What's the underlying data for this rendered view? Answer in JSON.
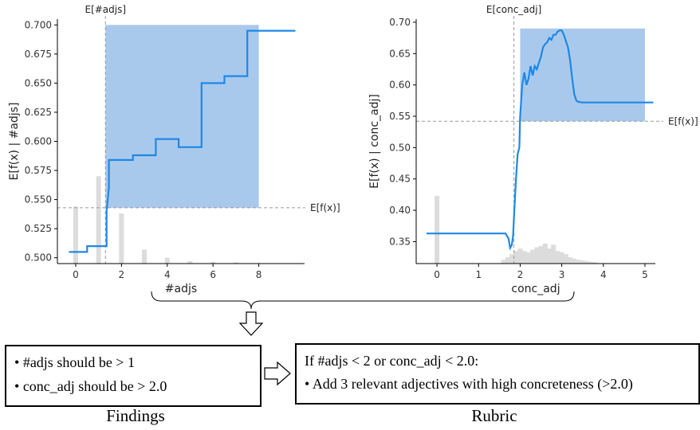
{
  "colors": {
    "curve": "#1e88e5",
    "band": "#a9c9ec",
    "hist": "#dcdcdc",
    "ref": "#999999"
  },
  "chart_data": [
    {
      "type": "line",
      "xlabel": "#adjs",
      "ylabel": "E[f(x) | #adjs]",
      "xlim": [
        -0.8,
        10.0
      ],
      "ylim": [
        0.495,
        0.705
      ],
      "xticks": [
        0,
        2,
        4,
        6,
        8
      ],
      "yticks": [
        "0.500",
        "0.525",
        "0.550",
        "0.575",
        "0.600",
        "0.625",
        "0.650",
        "0.675",
        "0.700"
      ],
      "ytick_values": [
        0.5,
        0.525,
        0.55,
        0.575,
        0.6,
        0.625,
        0.65,
        0.675,
        0.7
      ],
      "expected_x_label": "E[#adjs]",
      "expected_x": 1.3,
      "expected_y_label": "E[f(x)]",
      "expected_y": 0.543,
      "band": {
        "x": [
          1.3,
          8.0
        ],
        "y": [
          0.543,
          0.7
        ]
      },
      "series": [
        {
          "x": [
            -0.3,
            0.5,
            0.5,
            1.35,
            1.35,
            1.45,
            1.45,
            2.5,
            2.5,
            3.5,
            3.5,
            4.5,
            4.5,
            5.5,
            5.5,
            6.5,
            6.5,
            7.5,
            7.5,
            9.6
          ],
          "y": [
            0.505,
            0.505,
            0.51,
            0.51,
            0.54,
            0.56,
            0.584,
            0.584,
            0.588,
            0.588,
            0.602,
            0.602,
            0.595,
            0.595,
            0.65,
            0.65,
            0.656,
            0.656,
            0.695,
            0.695
          ]
        }
      ],
      "histogram": {
        "x": [
          0,
          1,
          2,
          3,
          4,
          5,
          6,
          7
        ],
        "height": [
          0.049,
          0.075,
          0.043,
          0.012,
          0.005,
          0.002,
          0.0015,
          0.001
        ]
      }
    },
    {
      "type": "line",
      "xlabel": "conc_adj",
      "ylabel": "E[f(x) | conc_adj]",
      "xlim": [
        -0.5,
        5.25
      ],
      "ylim": [
        0.315,
        0.705
      ],
      "xticks": [
        0,
        1,
        2,
        3,
        4,
        5
      ],
      "yticks": [
        "0.35",
        "0.40",
        "0.45",
        "0.50",
        "0.55",
        "0.60",
        "0.65",
        "0.70"
      ],
      "ytick_values": [
        0.35,
        0.4,
        0.45,
        0.5,
        0.55,
        0.6,
        0.65,
        0.7
      ],
      "expected_x_label": "E[conc_adj]",
      "expected_x": 1.85,
      "expected_y_label": "E[f(x)]",
      "expected_y": 0.542,
      "band": {
        "x": [
          2.0,
          5.0
        ],
        "y": [
          0.542,
          0.69
        ]
      },
      "series": [
        {
          "x": [
            -0.25,
            1.65,
            1.72,
            1.76,
            1.8,
            1.83,
            1.86,
            1.9,
            1.94,
            1.98,
            2.0,
            2.05,
            2.1,
            2.15,
            2.2,
            2.25,
            2.3,
            2.35,
            2.4,
            2.45,
            2.5,
            2.55,
            2.6,
            2.65,
            2.7,
            2.75,
            2.8,
            2.85,
            2.9,
            2.95,
            3.0,
            3.05,
            3.1,
            3.15,
            3.2,
            3.25,
            3.3,
            3.35,
            3.4,
            3.5,
            3.6,
            4.0,
            5.2
          ],
          "y": [
            0.363,
            0.363,
            0.355,
            0.34,
            0.345,
            0.36,
            0.4,
            0.45,
            0.49,
            0.5,
            0.55,
            0.6,
            0.62,
            0.6,
            0.61,
            0.63,
            0.615,
            0.63,
            0.625,
            0.635,
            0.645,
            0.66,
            0.665,
            0.668,
            0.675,
            0.672,
            0.68,
            0.68,
            0.685,
            0.687,
            0.687,
            0.68,
            0.67,
            0.66,
            0.64,
            0.61,
            0.585,
            0.575,
            0.573,
            0.572,
            0.572,
            0.572,
            0.572
          ]
        }
      ],
      "histogram": {
        "x": [
          0.0,
          1.6,
          1.7,
          1.8,
          1.9,
          2.0,
          2.1,
          2.2,
          2.3,
          2.4,
          2.5,
          2.6,
          2.7,
          2.8,
          2.9,
          3.0,
          3.1,
          3.2,
          3.3,
          3.4,
          3.5,
          3.6,
          3.7,
          3.8
        ],
        "height": [
          0.108,
          0.006,
          0.01,
          0.015,
          0.02,
          0.024,
          0.02,
          0.018,
          0.022,
          0.026,
          0.028,
          0.032,
          0.024,
          0.03,
          0.02,
          0.018,
          0.015,
          0.01,
          0.008,
          0.006,
          0.005,
          0.004,
          0.003,
          0.002
        ]
      }
    }
  ],
  "findings": {
    "item1_var": "#adjs",
    "item1_rest": " should be > 1",
    "item2_var": "conc_adj",
    "item2_rest": " should be > 2.0",
    "caption": "Findings"
  },
  "rubric": {
    "if_word": "If ",
    "var1": "#adjs",
    "cond1": " < 2 or ",
    "var2": "conc_adj",
    "cond2": " < 2.0:",
    "item": "Add 3 relevant adjectives with high concreteness (>2.0)",
    "caption": "Rubric"
  }
}
